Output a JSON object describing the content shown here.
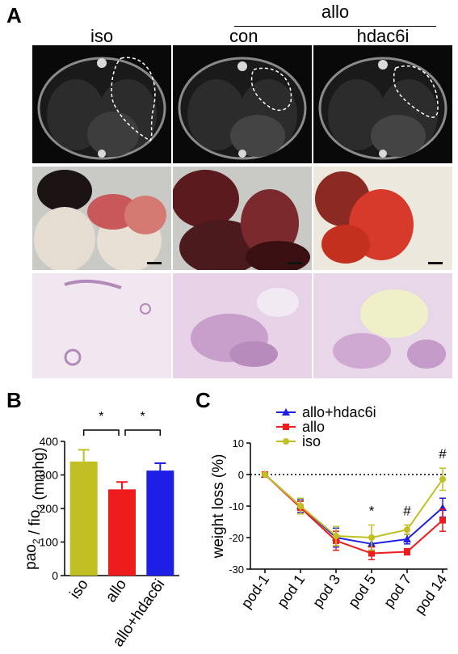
{
  "panel_a": {
    "letter": "A",
    "group_header": "allo",
    "columns": [
      "iso",
      "con",
      "hdac6i"
    ]
  },
  "panel_b": {
    "letter": "B",
    "ylabel": "pao2 / fio2 (mmhg)",
    "significance": [
      "*",
      "*"
    ]
  },
  "panel_c": {
    "letter": "C",
    "ylabel": "weight loss (%)"
  },
  "colors": {
    "iso": "#c0c024",
    "allo": "#ee1c1c",
    "allo_hdac6i": "#1e1ee6"
  },
  "chart_data": [
    {
      "type": "bar",
      "categories": [
        "iso",
        "allo",
        "allo+hdac6i"
      ],
      "values": [
        340,
        257,
        313
      ],
      "errors": [
        35,
        22,
        22
      ],
      "ylabel": "pao2 / fio2 (mmhg)",
      "ylim": [
        0,
        400
      ],
      "yticks": [
        0,
        100,
        200,
        300,
        400
      ],
      "significance": [
        {
          "pair": [
            "iso",
            "allo"
          ],
          "label": "*"
        },
        {
          "pair": [
            "allo",
            "allo+hdac6i"
          ],
          "label": "*"
        }
      ]
    },
    {
      "type": "line",
      "categories": [
        "pod-1",
        "pod 1",
        "pod 3",
        "pod 5",
        "pod 7",
        "pod 14"
      ],
      "ylabel": "weight loss (%)",
      "ylim": [
        -30,
        10
      ],
      "yticks": [
        10,
        0,
        -10,
        -20,
        -30
      ],
      "legend_position": "top",
      "reference_line": 0,
      "series": [
        {
          "name": "allo+hdac6i",
          "values": [
            0,
            -10,
            -20,
            -22,
            -20.5,
            -10.5
          ],
          "errors": [
            0,
            2,
            3,
            2,
            1.5,
            3
          ]
        },
        {
          "name": "allo",
          "values": [
            0,
            -10.5,
            -21,
            -25,
            -24.5,
            -14.5
          ],
          "errors": [
            0,
            2,
            3,
            2,
            1,
            3.5
          ]
        },
        {
          "name": "iso",
          "values": [
            0,
            -10,
            -19.5,
            -20,
            -17.5,
            -1.5
          ],
          "errors": [
            0,
            2.5,
            3,
            4,
            1.5,
            3.5
          ]
        }
      ],
      "annotations": [
        {
          "x": "pod 5",
          "label": "*"
        },
        {
          "x": "pod 7",
          "label": "#"
        },
        {
          "x": "pod 14",
          "label": "#"
        }
      ]
    }
  ]
}
